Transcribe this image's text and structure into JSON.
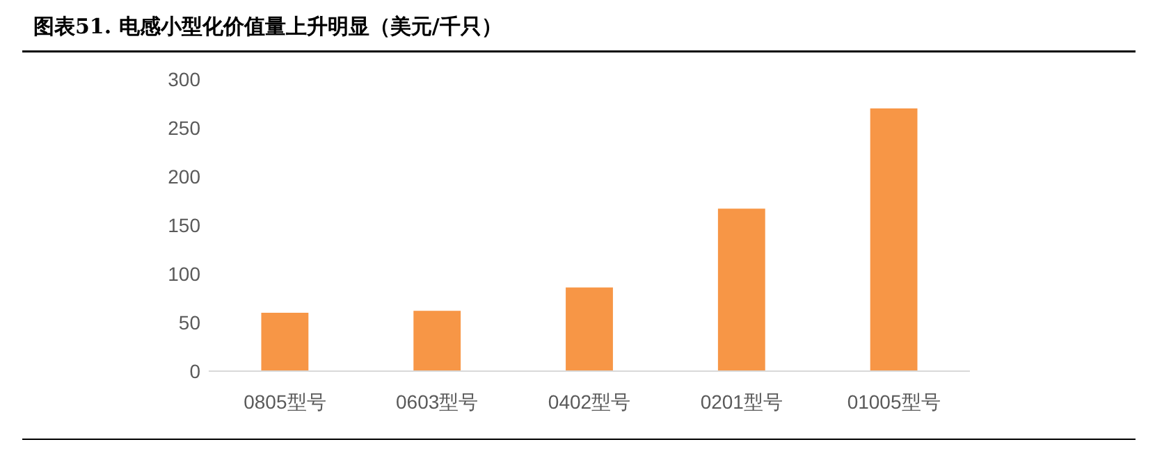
{
  "chart_data": {
    "type": "bar",
    "title": "图表51.  电感小型化价值量上升明显（美元/千只）",
    "categories": [
      "0805型号",
      "0603型号",
      "0402型号",
      "0201型号",
      "01005型号"
    ],
    "values": [
      60,
      62,
      86,
      167,
      270
    ],
    "color": "#f79646",
    "ylim": [
      0,
      300
    ],
    "yticks": [
      0,
      50,
      100,
      150,
      200,
      250,
      300
    ],
    "grid": false,
    "legend": false
  }
}
